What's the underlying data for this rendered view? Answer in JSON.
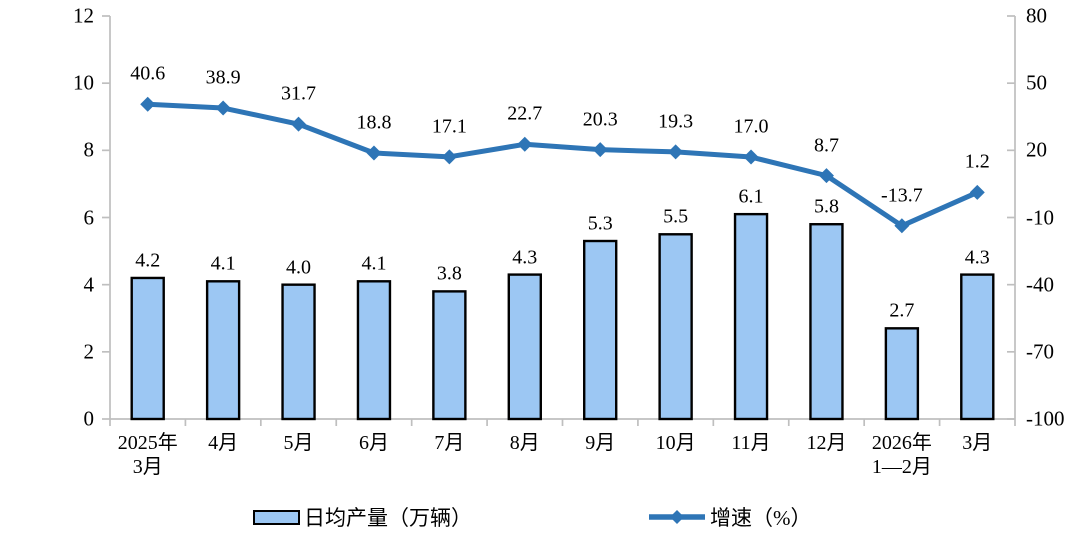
{
  "chart_data": {
    "type": "combo-bar-line",
    "title": "",
    "categories": [
      [
        "2025年",
        "3月"
      ],
      [
        "4月"
      ],
      [
        "5月"
      ],
      [
        "6月"
      ],
      [
        "7月"
      ],
      [
        "8月"
      ],
      [
        "9月"
      ],
      [
        "10月"
      ],
      [
        "11月"
      ],
      [
        "12月"
      ],
      [
        "2026年",
        "1—2月"
      ],
      [
        "3月"
      ]
    ],
    "series": [
      {
        "name": "日均产量（万辆）",
        "type": "bar",
        "axis": "left",
        "values": [
          4.2,
          4.1,
          4.0,
          4.1,
          3.8,
          4.3,
          5.3,
          5.5,
          6.1,
          5.8,
          2.7,
          4.3
        ],
        "fill": "#9CC7F3",
        "stroke": "#000000"
      },
      {
        "name": "增速（%）",
        "type": "line",
        "axis": "right",
        "values": [
          40.6,
          38.9,
          31.7,
          18.8,
          17.1,
          22.7,
          20.3,
          19.3,
          17.0,
          8.7,
          -13.7,
          1.2
        ],
        "color": "#2E75B6",
        "marker": "diamond"
      }
    ],
    "left_axis": {
      "min": 0,
      "max": 12,
      "ticks": [
        0,
        2,
        4,
        6,
        8,
        10,
        12
      ]
    },
    "right_axis": {
      "min": -100,
      "max": 80,
      "ticks": [
        -100,
        -70,
        -40,
        -10,
        20,
        50,
        80
      ]
    },
    "grid": false,
    "legend_position": "bottom",
    "axis_color": "#BFBFBF",
    "text_color": "#000000",
    "background": "#FFFFFF"
  }
}
